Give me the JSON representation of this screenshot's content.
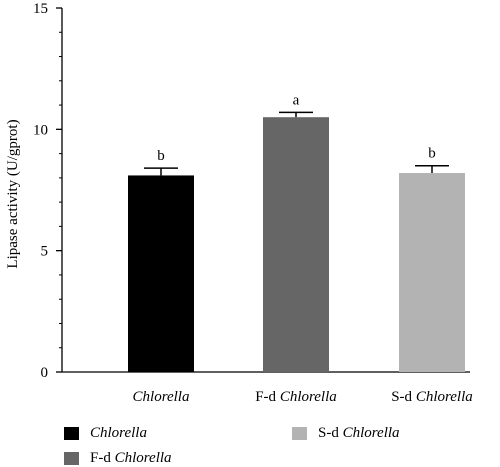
{
  "chart_data": {
    "type": "bar",
    "categories": [
      {
        "prefix": "",
        "italic": "Chlorella"
      },
      {
        "prefix": "F-d ",
        "italic": "Chlorella"
      },
      {
        "prefix": "S-d ",
        "italic": "Chlorella"
      }
    ],
    "values": [
      8.1,
      10.5,
      8.2
    ],
    "errors": [
      0.3,
      0.2,
      0.3
    ],
    "significance": [
      "b",
      "a",
      "b"
    ],
    "colors": [
      "#000000",
      "#666666",
      "#b3b3b3"
    ],
    "ylabel": "Lipase activity (U/gprot)",
    "ylim": [
      0,
      15
    ],
    "yticks": [
      "0",
      "5",
      "10",
      "15"
    ],
    "ytick_values": [
      0,
      5,
      10,
      15
    ],
    "legend_position": "bottom",
    "legend": [
      {
        "prefix": "",
        "italic": "Chlorella"
      },
      {
        "prefix": "F-d ",
        "italic": "Chlorella"
      },
      {
        "prefix": "S-d ",
        "italic": "Chlorella"
      }
    ]
  }
}
